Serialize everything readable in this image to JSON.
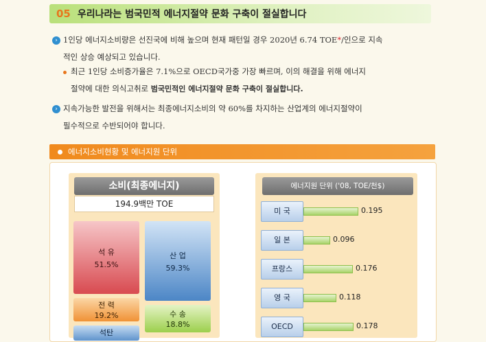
{
  "heading": {
    "number": "05",
    "title": "우리나라는 범국민적 에너지절약 문화 구축이 절실합니다"
  },
  "paragraphs": {
    "p1_line1_pre": "1인당 에너지소비량은 선진국에 비해 높으며 현재 패턴일 경우 2020년 6.74 TOE",
    "p1_star": "*",
    "p1_line1_post": "/인으로 지속",
    "p1_line2": "적인 상승 예상되고 있습니다.",
    "sub_line1": "최근 1인당 소비증가율은 7.1%으로 OECD국가중 가장 빠르며, 이의 해결을 위해 에너지",
    "sub_line2_pre": "절약에 대한 의식고취로 ",
    "sub_line2_bold": "범국민적인 에너지절약 문화 구축이 절실합니다.",
    "p2_line1": "지속가능한 발전을 위해서는 최종에너지소비의 약 60%를 차지하는 산업계의 에너지절약이",
    "p2_line2": "필수적으로 수반되어야 합니다."
  },
  "section": {
    "title": "에너지소비현황 및 에너지원 단위"
  },
  "consumption": {
    "title": "소비(최종에너지)",
    "total": "194.9백만 TOE",
    "cells": {
      "oil": {
        "name": "석 유",
        "value": "51.5%"
      },
      "electricity": {
        "name": "전 력",
        "value": "19.2%"
      },
      "coal": {
        "name": "석탄"
      },
      "industry": {
        "name": "산 업",
        "value": "59.3%"
      },
      "transport": {
        "name": "수 송",
        "value": "18.8%"
      }
    }
  },
  "energy_unit": {
    "title": "에너지원 단위 ('08, TOE/천$)",
    "items": [
      {
        "country": "미 국",
        "value": 0.195,
        "label": "0.195"
      },
      {
        "country": "일 본",
        "value": 0.096,
        "label": "0.096"
      },
      {
        "country": "프랑스",
        "value": 0.176,
        "label": "0.176"
      },
      {
        "country": "영 국",
        "value": 0.118,
        "label": "0.118"
      },
      {
        "country": "OECD",
        "value": 0.178,
        "label": "0.178"
      }
    ]
  },
  "colors": {
    "accent_orange": "#e8761c",
    "title_green": "#b9e07a",
    "bullet_blue": "#2f8fd0"
  }
}
